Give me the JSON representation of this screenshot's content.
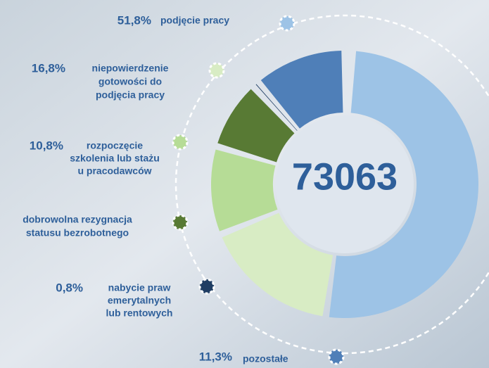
{
  "chart_data": {
    "type": "donut",
    "total": 73063,
    "categories": [
      [
        "podjęcie pracy"
      ],
      [
        "niepowierdzenie",
        "gotowości do",
        "podjęcia pracy"
      ],
      [
        "rozpoczęcie",
        "szkolenia lub stażu",
        "u pracodawców"
      ],
      [
        "dobrowolna rezygnacja",
        "statusu bezrobotnego"
      ],
      [
        "nabycie praw",
        "emerytalnych",
        "lub rentowych"
      ],
      [
        "pozostałe"
      ]
    ],
    "values": [
      51.8,
      16.8,
      10.8,
      8.5,
      0.8,
      11.3
    ],
    "value_labels": [
      "51,8%",
      "16,8%",
      "10,8%",
      null,
      "0,8%",
      "11,3%"
    ],
    "colors": [
      "#9dc3e6",
      "#d8ecc4",
      "#b6dc96",
      "#587a34",
      "#1f3d63",
      "#4f7fb8"
    ]
  }
}
